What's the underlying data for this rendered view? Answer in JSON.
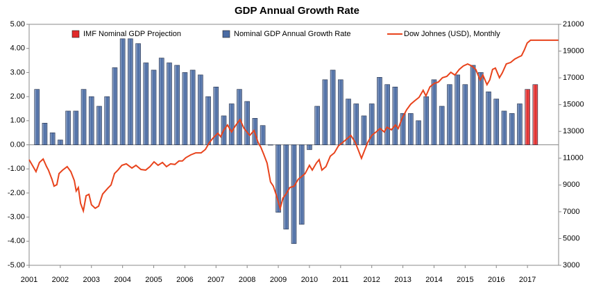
{
  "chart_data": {
    "type": "bar",
    "title": "GDP Annual Growth Rate",
    "xlim": [
      2001,
      2018
    ],
    "xticks": [
      2001,
      2002,
      2003,
      2004,
      2005,
      2006,
      2007,
      2008,
      2009,
      2010,
      2011,
      2012,
      2013,
      2014,
      2015,
      2016,
      2017
    ],
    "ylim": [
      -5,
      5
    ],
    "yticks": [
      {
        "value": -5,
        "label": "-5.00"
      },
      {
        "value": -4,
        "label": "-4.00"
      },
      {
        "value": -3,
        "label": "-3.00"
      },
      {
        "value": -2,
        "label": "-2.00"
      },
      {
        "value": -1,
        "label": "-1.00"
      },
      {
        "value": 0,
        "label": "0.00"
      },
      {
        "value": 1,
        "label": "1.00"
      },
      {
        "value": 2,
        "label": "2.00"
      },
      {
        "value": 3,
        "label": "3.00"
      },
      {
        "value": 4,
        "label": "4.00"
      },
      {
        "value": 5,
        "label": "5.00"
      }
    ],
    "y2lim": [
      3000,
      21000
    ],
    "y2ticks": [
      3000,
      5000,
      7000,
      9000,
      11000,
      13000,
      15000,
      17000,
      19000,
      21000
    ],
    "legend": "top",
    "series": [
      {
        "name": "IMF Nominal GDP Projection",
        "type": "bar",
        "color": "#e02a2a",
        "x": [
          2017.0,
          2017.25
        ],
        "values": [
          2.3,
          2.5
        ]
      },
      {
        "name": "Nominal GDP Annual Growth Rate",
        "type": "bar",
        "color": "#4a6ba3",
        "x": [
          2001.25,
          2001.5,
          2001.75,
          2002.0,
          2002.25,
          2002.5,
          2002.75,
          2003.0,
          2003.25,
          2003.5,
          2003.75,
          2004.0,
          2004.25,
          2004.5,
          2004.75,
          2005.0,
          2005.25,
          2005.5,
          2005.75,
          2006.0,
          2006.25,
          2006.5,
          2006.75,
          2007.0,
          2007.25,
          2007.5,
          2007.75,
          2008.0,
          2008.25,
          2008.5,
          2008.75,
          2009.0,
          2009.25,
          2009.5,
          2009.75,
          2010.0,
          2010.25,
          2010.5,
          2010.75,
          2011.0,
          2011.25,
          2011.5,
          2011.75,
          2012.0,
          2012.25,
          2012.5,
          2012.75,
          2013.0,
          2013.25,
          2013.5,
          2013.75,
          2014.0,
          2014.25,
          2014.5,
          2014.75,
          2015.0,
          2015.25,
          2015.5,
          2015.75,
          2016.0,
          2016.25,
          2016.5,
          2016.75
        ],
        "values": [
          2.3,
          0.9,
          0.5,
          0.2,
          1.4,
          1.4,
          2.3,
          2.0,
          1.6,
          2.0,
          3.2,
          4.4,
          4.4,
          4.2,
          3.4,
          3.1,
          3.6,
          3.4,
          3.3,
          3.0,
          3.1,
          2.9,
          2.0,
          2.4,
          1.2,
          1.7,
          2.3,
          1.8,
          1.1,
          0.8,
          0.0,
          -2.8,
          -3.5,
          -4.1,
          -3.3,
          -0.2,
          1.6,
          2.7,
          3.1,
          2.7,
          1.9,
          1.7,
          1.2,
          1.7,
          2.8,
          2.5,
          2.4,
          1.3,
          1.3,
          1.0,
          2.0,
          2.7,
          1.6,
          2.5,
          2.9,
          2.5,
          3.3,
          3.0,
          2.2,
          1.9,
          1.4,
          1.3,
          1.7
        ]
      },
      {
        "name": "Dow Johnes (USD), Monthly",
        "type": "line",
        "axis": "y2",
        "color": "#e8431c",
        "x": [
          2001.0,
          2001.22,
          2001.33,
          2001.45,
          2001.56,
          2001.62,
          2001.73,
          2001.8,
          2001.89,
          2001.96,
          2002.07,
          2002.22,
          2002.34,
          2002.45,
          2002.51,
          2002.58,
          2002.65,
          2002.74,
          2002.83,
          2002.92,
          2003.0,
          2003.12,
          2003.23,
          2003.36,
          2003.52,
          2003.63,
          2003.74,
          2003.85,
          2003.98,
          2004.12,
          2004.3,
          2004.43,
          2004.59,
          2004.74,
          2004.88,
          2005.01,
          2005.14,
          2005.28,
          2005.41,
          2005.54,
          2005.68,
          2005.81,
          2005.92,
          2006.03,
          2006.19,
          2006.35,
          2006.52,
          2006.66,
          2006.79,
          2006.92,
          2007.06,
          2007.15,
          2007.24,
          2007.37,
          2007.5,
          2007.64,
          2007.77,
          2007.9,
          2008.08,
          2008.22,
          2008.35,
          2008.44,
          2008.53,
          2008.64,
          2008.75,
          2008.84,
          2008.93,
          2009.06,
          2009.15,
          2009.24,
          2009.37,
          2009.51,
          2009.64,
          2009.73,
          2009.86,
          2010.0,
          2010.09,
          2010.22,
          2010.31,
          2010.4,
          2010.53,
          2010.67,
          2010.8,
          2010.93,
          2011.07,
          2011.2,
          2011.33,
          2011.47,
          2011.56,
          2011.67,
          2011.76,
          2011.87,
          2012.0,
          2012.14,
          2012.27,
          2012.4,
          2012.49,
          2012.63,
          2012.76,
          2012.85,
          2012.98,
          2013.12,
          2013.25,
          2013.38,
          2013.52,
          2013.65,
          2013.74,
          2013.87,
          2014.01,
          2014.14,
          2014.27,
          2014.41,
          2014.54,
          2014.67,
          2014.81,
          2014.94,
          2015.08,
          2015.21,
          2015.34,
          2015.48,
          2015.57,
          2015.7,
          2015.79,
          2015.88,
          2015.97,
          2016.1,
          2016.19,
          2016.32,
          2016.46,
          2016.59,
          2016.72,
          2016.81,
          2016.9,
          2016.99,
          2017.1,
          2017.99
        ],
        "values": [
          10886,
          10000,
          10680,
          10940,
          10370,
          10110,
          9430,
          8915,
          9020,
          9850,
          10100,
          10370,
          10000,
          9330,
          8550,
          8810,
          7630,
          7060,
          8200,
          8300,
          7520,
          7260,
          7420,
          8320,
          8740,
          9000,
          9850,
          10110,
          10470,
          10580,
          10260,
          10470,
          10160,
          10110,
          10370,
          10730,
          10470,
          10680,
          10370,
          10580,
          10530,
          10790,
          10790,
          11040,
          11250,
          11400,
          11400,
          11660,
          12180,
          12550,
          12860,
          12600,
          13070,
          13480,
          12960,
          13480,
          13890,
          13220,
          12700,
          13070,
          12180,
          11820,
          11300,
          10630,
          9230,
          8910,
          8290,
          7250,
          8030,
          8290,
          8810,
          8910,
          9430,
          9590,
          9850,
          10470,
          10110,
          10630,
          10890,
          10110,
          10370,
          11150,
          11400,
          11920,
          12180,
          12440,
          12700,
          12180,
          11660,
          10990,
          11520,
          12180,
          12700,
          12960,
          13220,
          12960,
          13320,
          13120,
          13480,
          13220,
          14000,
          14620,
          15030,
          15290,
          15550,
          16070,
          15650,
          16330,
          16590,
          16690,
          17010,
          17110,
          17420,
          17210,
          17630,
          17890,
          18040,
          17890,
          17630,
          16850,
          17210,
          16490,
          16850,
          17630,
          17730,
          17010,
          17370,
          18040,
          18150,
          18400,
          18560,
          18660,
          19080,
          19600,
          19810,
          19810
        ]
      }
    ]
  }
}
